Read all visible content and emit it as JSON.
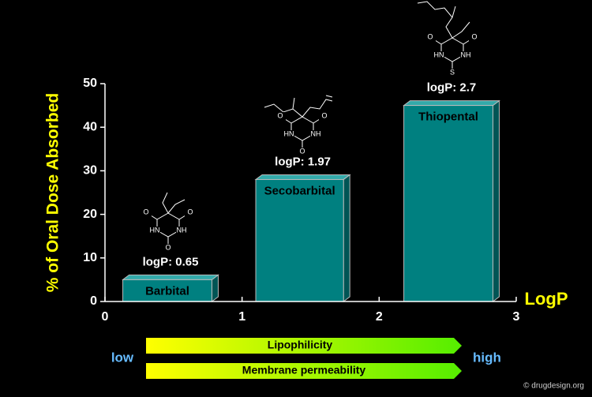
{
  "chart_data": {
    "type": "bar",
    "y_label": "% of Oral Dose Absorbed",
    "x_label": "LogP",
    "categories": [
      "Barbital",
      "Secobarbital",
      "Thiopental"
    ],
    "values": [
      5,
      28,
      45
    ],
    "x_ranges": [
      [
        0.13,
        0.78
      ],
      [
        1.1,
        1.74
      ],
      [
        2.18,
        2.83
      ]
    ],
    "annotations": [
      "logP: 0.65",
      "logP: 1.97",
      "logP: 2.7"
    ],
    "color": "#008080",
    "xlim": [
      0,
      3
    ],
    "xticks": [
      0,
      1,
      2,
      3
    ],
    "ylim": [
      0,
      50
    ],
    "yticks": [
      0,
      10,
      20,
      30,
      40,
      50
    ],
    "molecules": [
      {
        "atoms": [
          "O",
          "O",
          "HN",
          "NH",
          "O"
        ]
      },
      {
        "atoms": [
          "O",
          "O",
          "HN",
          "NH",
          "O"
        ]
      },
      {
        "atoms": [
          "O",
          "O",
          "HN",
          "NH",
          "S"
        ]
      }
    ],
    "arrows": [
      "Lipophilicity",
      "Membrane permeability"
    ],
    "low_label": "low",
    "high_label": "high",
    "credit": "© drugdesign.org"
  }
}
